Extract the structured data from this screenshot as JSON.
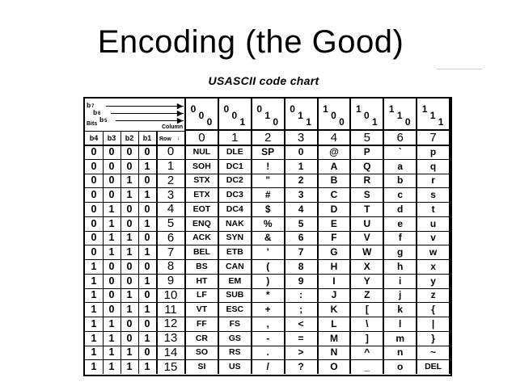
{
  "slide": {
    "title": "Encoding (the Good)"
  },
  "chart": {
    "title": "USASCII code chart",
    "corner": {
      "b7": "b",
      "b6": "b",
      "b5": "b",
      "bits": "Bits",
      "column": "Column",
      "row": "Row",
      "bit_headers": [
        "b4",
        "b3",
        "b2",
        "b1"
      ]
    },
    "column_bits": [
      [
        "0",
        "0",
        "0"
      ],
      [
        "0",
        "0",
        "1"
      ],
      [
        "0",
        "1",
        "0"
      ],
      [
        "0",
        "1",
        "1"
      ],
      [
        "1",
        "0",
        "0"
      ],
      [
        "1",
        "0",
        "1"
      ],
      [
        "1",
        "1",
        "0"
      ],
      [
        "1",
        "1",
        "1"
      ]
    ],
    "column_numbers": [
      "0",
      "1",
      "2",
      "3",
      "4",
      "5",
      "6",
      "7"
    ],
    "rows": [
      {
        "bits": [
          "0",
          "0",
          "0",
          "0"
        ],
        "row": "0",
        "chars": [
          "NUL",
          "DLE",
          "SP",
          "0",
          "@",
          "P",
          "`",
          "p"
        ]
      },
      {
        "bits": [
          "0",
          "0",
          "0",
          "1"
        ],
        "row": "1",
        "chars": [
          "SOH",
          "DC1",
          "!",
          "1",
          "A",
          "Q",
          "a",
          "q"
        ]
      },
      {
        "bits": [
          "0",
          "0",
          "1",
          "0"
        ],
        "row": "2",
        "chars": [
          "STX",
          "DC2",
          "\"",
          "2",
          "B",
          "R",
          "b",
          "r"
        ]
      },
      {
        "bits": [
          "0",
          "0",
          "1",
          "1"
        ],
        "row": "3",
        "chars": [
          "ETX",
          "DC3",
          "#",
          "3",
          "C",
          "S",
          "c",
          "s"
        ]
      },
      {
        "bits": [
          "0",
          "1",
          "0",
          "0"
        ],
        "row": "4",
        "chars": [
          "EOT",
          "DC4",
          "$",
          "4",
          "D",
          "T",
          "d",
          "t"
        ]
      },
      {
        "bits": [
          "0",
          "1",
          "0",
          "1"
        ],
        "row": "5",
        "chars": [
          "ENQ",
          "NAK",
          "%",
          "5",
          "E",
          "U",
          "e",
          "u"
        ]
      },
      {
        "bits": [
          "0",
          "1",
          "1",
          "0"
        ],
        "row": "6",
        "chars": [
          "ACK",
          "SYN",
          "&",
          "6",
          "F",
          "V",
          "f",
          "v"
        ]
      },
      {
        "bits": [
          "0",
          "1",
          "1",
          "1"
        ],
        "row": "7",
        "chars": [
          "BEL",
          "ETB",
          "'",
          "7",
          "G",
          "W",
          "g",
          "w"
        ]
      },
      {
        "bits": [
          "1",
          "0",
          "0",
          "0"
        ],
        "row": "8",
        "chars": [
          "BS",
          "CAN",
          "(",
          "8",
          "H",
          "X",
          "h",
          "x"
        ]
      },
      {
        "bits": [
          "1",
          "0",
          "0",
          "1"
        ],
        "row": "9",
        "chars": [
          "HT",
          "EM",
          ")",
          "9",
          "I",
          "Y",
          "i",
          "y"
        ]
      },
      {
        "bits": [
          "1",
          "0",
          "1",
          "0"
        ],
        "row": "10",
        "chars": [
          "LF",
          "SUB",
          "*",
          ":",
          "J",
          "Z",
          "j",
          "z"
        ]
      },
      {
        "bits": [
          "1",
          "0",
          "1",
          "1"
        ],
        "row": "11",
        "chars": [
          "VT",
          "ESC",
          "+",
          ";",
          "K",
          "[",
          "k",
          "{"
        ]
      },
      {
        "bits": [
          "1",
          "1",
          "0",
          "0"
        ],
        "row": "12",
        "chars": [
          "FF",
          "FS",
          ",",
          "<",
          "L",
          "\\",
          "l",
          "|"
        ]
      },
      {
        "bits": [
          "1",
          "1",
          "0",
          "1"
        ],
        "row": "13",
        "chars": [
          "CR",
          "GS",
          "-",
          "=",
          "M",
          "]",
          "m",
          "}"
        ]
      },
      {
        "bits": [
          "1",
          "1",
          "1",
          "0"
        ],
        "row": "14",
        "chars": [
          "SO",
          "RS",
          ".",
          ">",
          "N",
          "^",
          "n",
          "~"
        ]
      },
      {
        "bits": [
          "1",
          "1",
          "1",
          "1"
        ],
        "row": "15",
        "chars": [
          "SI",
          "US",
          "/",
          "?",
          "O",
          "_",
          "o",
          "DEL"
        ]
      }
    ]
  }
}
